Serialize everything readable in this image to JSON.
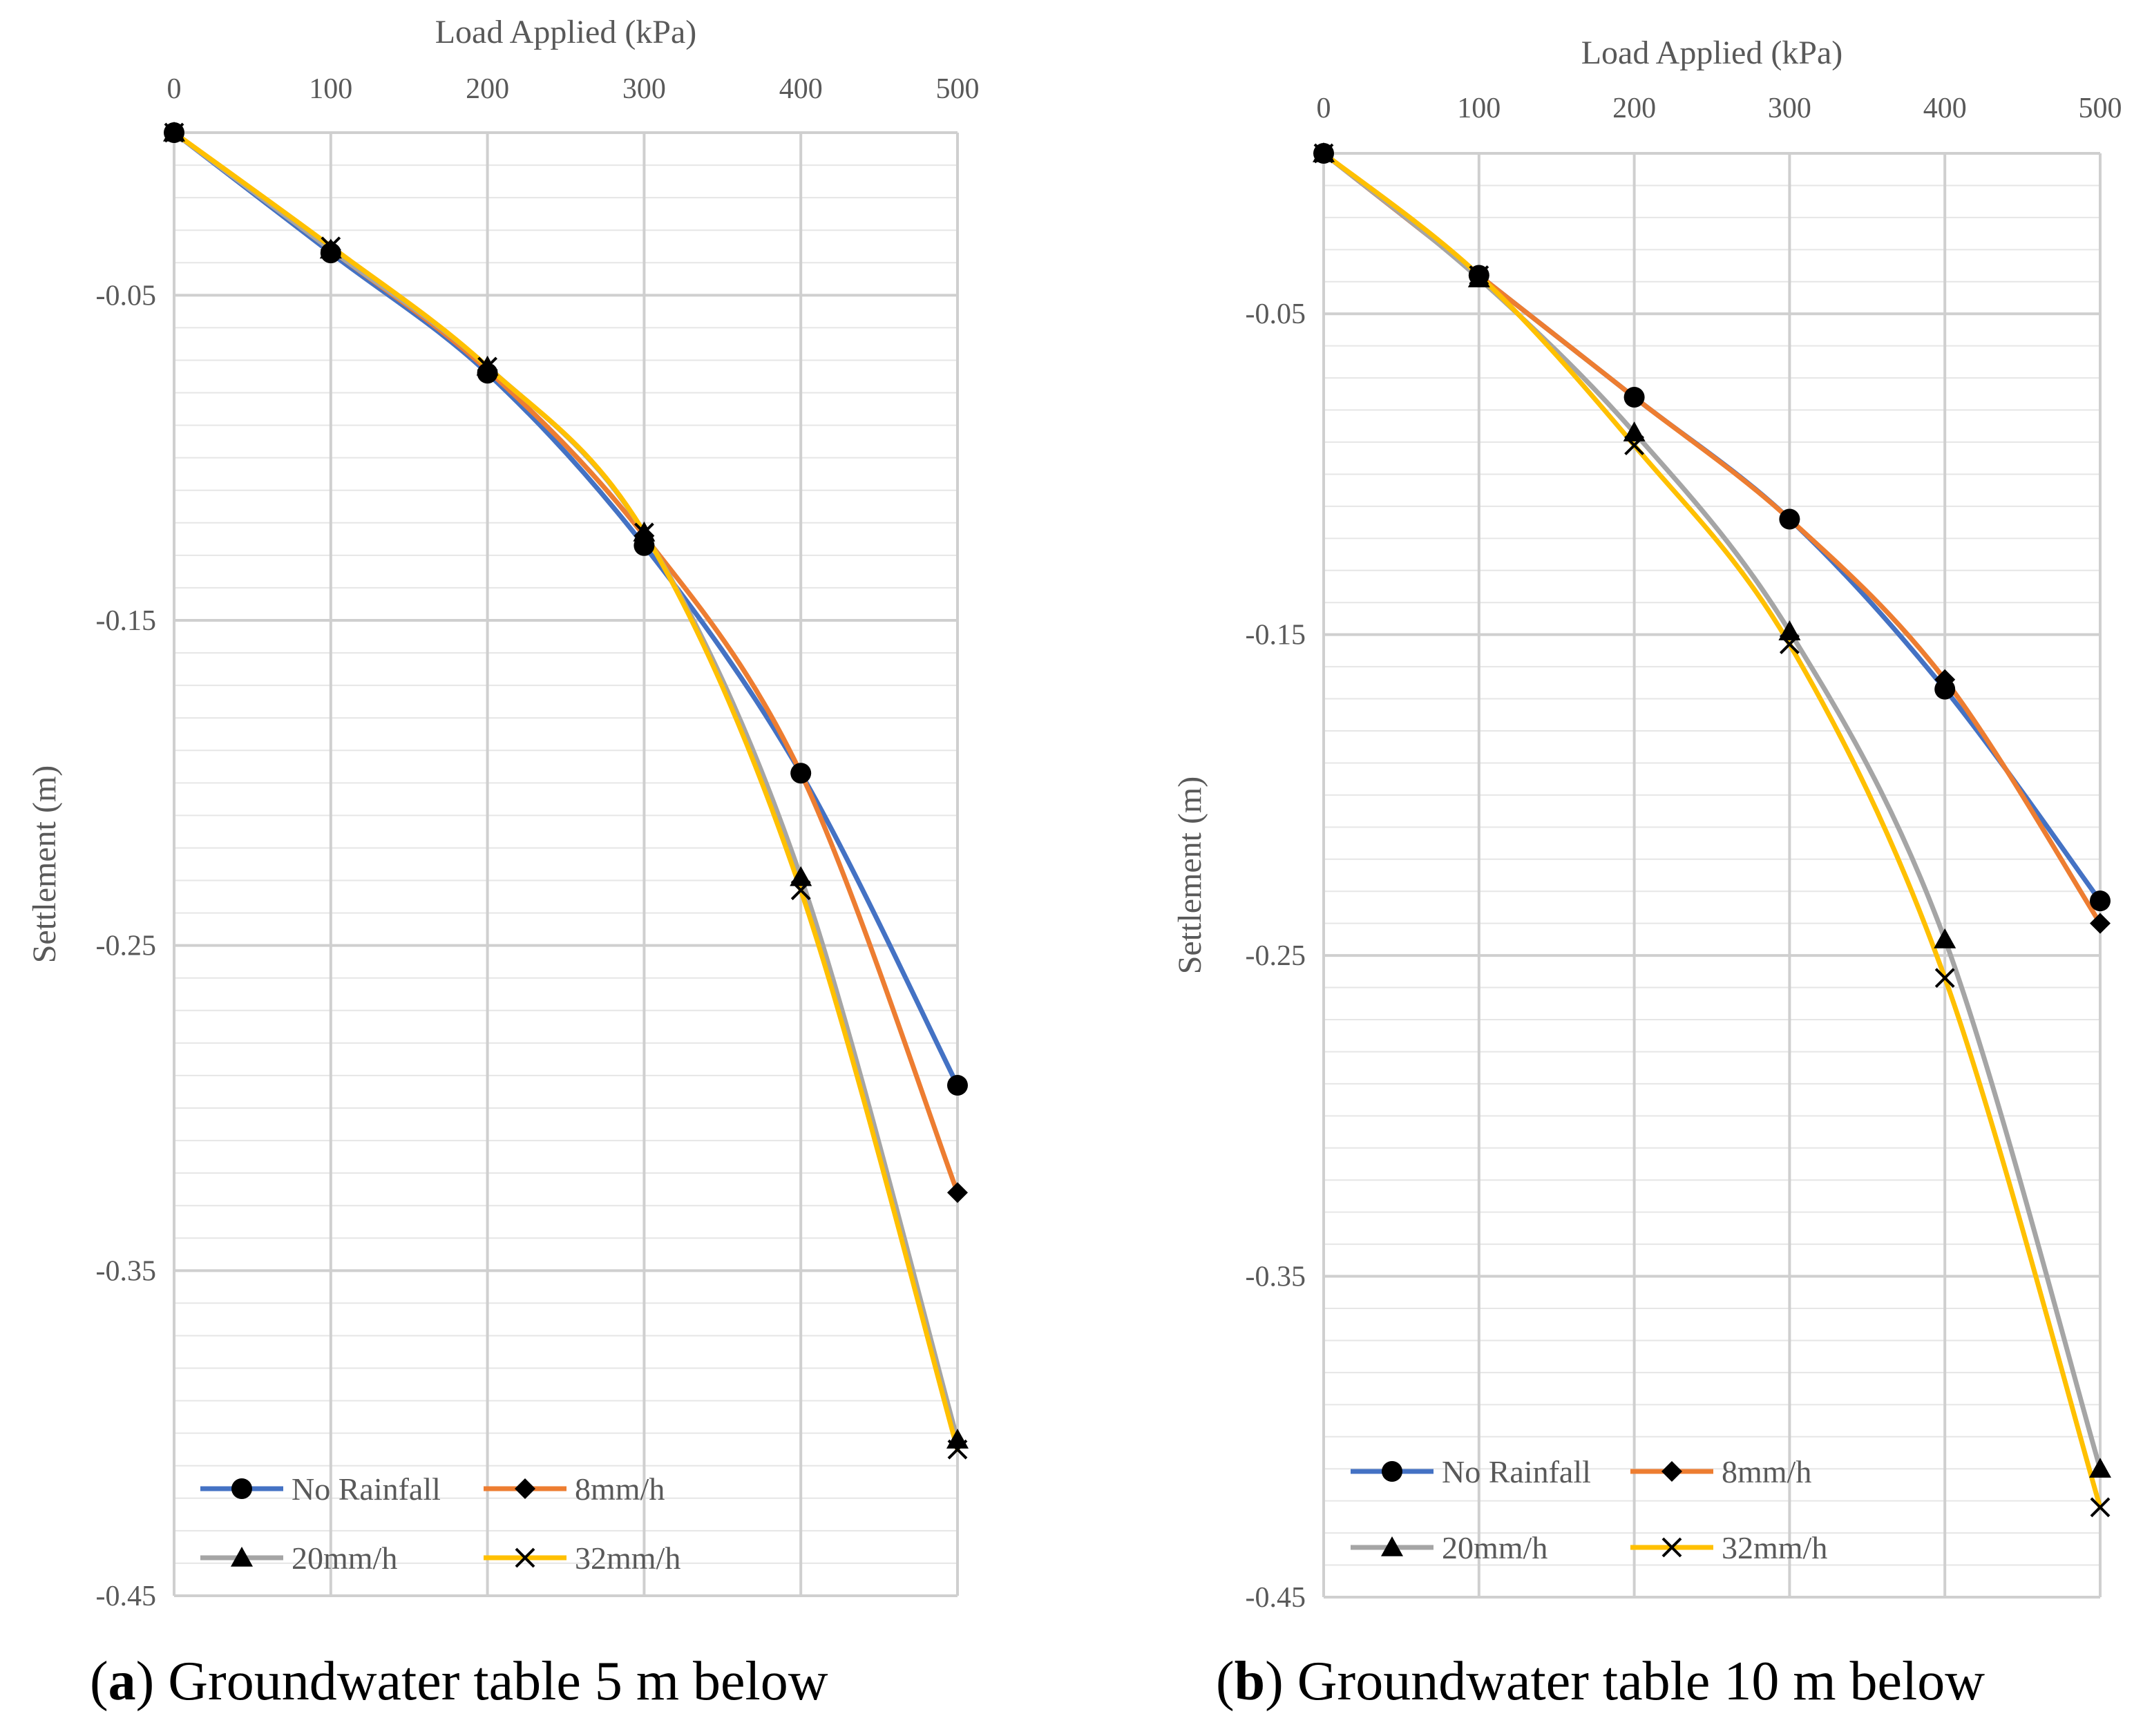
{
  "chart_data": [
    {
      "type": "line",
      "panel_label": "a",
      "caption": "Groundwater table 5 m below",
      "xlabel": "Load Applied (kPa)",
      "ylabel": "Settlement (m)",
      "x": [
        0,
        100,
        200,
        300,
        400,
        500
      ],
      "xlim": [
        0,
        500
      ],
      "ylim": [
        -0.45,
        0
      ],
      "xticks": [
        "0",
        "100",
        "200",
        "300",
        "400",
        "500"
      ],
      "yticks": [
        "-0.05",
        "-0.15",
        "-0.25",
        "-0.35",
        "-0.45"
      ],
      "series": [
        {
          "name": "No Rainfall",
          "color": "#4472C4",
          "marker": "circle",
          "values": [
            0,
            -0.037,
            -0.074,
            -0.127,
            -0.197,
            -0.293
          ]
        },
        {
          "name": "8mm/h",
          "color": "#ED7D31",
          "marker": "diamond",
          "values": [
            0,
            -0.036,
            -0.073,
            -0.124,
            -0.197,
            -0.326
          ]
        },
        {
          "name": "20mm/h",
          "color": "#A5A5A5",
          "marker": "triangle",
          "values": [
            0,
            -0.036,
            -0.072,
            -0.123,
            -0.229,
            -0.402
          ]
        },
        {
          "name": "32mm/h",
          "color": "#FFC000",
          "marker": "x",
          "values": [
            0,
            -0.035,
            -0.072,
            -0.123,
            -0.233,
            -0.405
          ]
        }
      ]
    },
    {
      "type": "line",
      "panel_label": "b",
      "caption": "Groundwater table 10 m below",
      "xlabel": "Load Applied (kPa)",
      "ylabel": "Settlement (m)",
      "x": [
        0,
        100,
        200,
        300,
        400,
        500
      ],
      "xlim": [
        0,
        500
      ],
      "ylim": [
        -0.45,
        0
      ],
      "xticks": [
        "0",
        "100",
        "200",
        "300",
        "400",
        "500"
      ],
      "yticks": [
        "-0.05",
        "-0.15",
        "-0.25",
        "-0.35",
        "-0.45"
      ],
      "series": [
        {
          "name": "No Rainfall",
          "color": "#4472C4",
          "marker": "circle",
          "values": [
            0,
            -0.038,
            -0.076,
            -0.114,
            -0.167,
            -0.233
          ]
        },
        {
          "name": "8mm/h",
          "color": "#ED7D31",
          "marker": "diamond",
          "values": [
            0,
            -0.038,
            -0.076,
            -0.114,
            -0.164,
            -0.24
          ]
        },
        {
          "name": "20mm/h",
          "color": "#A5A5A5",
          "marker": "triangle",
          "values": [
            0,
            -0.039,
            -0.087,
            -0.149,
            -0.245,
            -0.41
          ]
        },
        {
          "name": "32mm/h",
          "color": "#FFC000",
          "marker": "x",
          "values": [
            0,
            -0.038,
            -0.091,
            -0.153,
            -0.257,
            -0.422
          ]
        }
      ]
    }
  ]
}
